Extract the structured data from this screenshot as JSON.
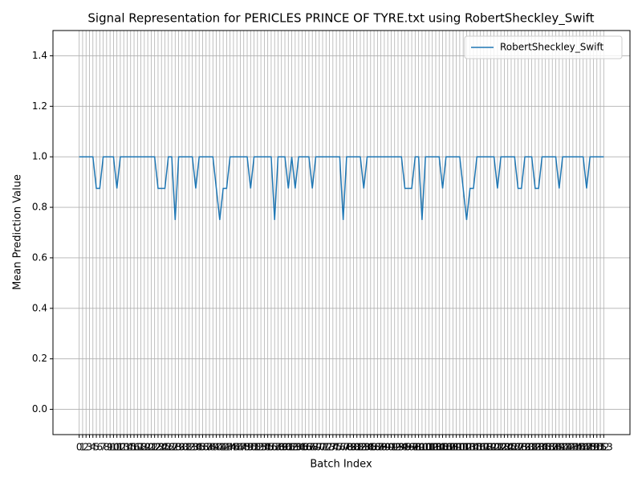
{
  "chart_data": {
    "type": "line",
    "title": "Signal Representation for PERICLES PRINCE OF TYRE.txt using RobertSheckley_Swift",
    "x_label": "Batch Index",
    "y_label": "Mean Prediction Value",
    "x": [
      0,
      1,
      2,
      3,
      4,
      5,
      6,
      7,
      8,
      9,
      10,
      11,
      12,
      13,
      14,
      15,
      16,
      17,
      18,
      19,
      20,
      21,
      22,
      23,
      24,
      25,
      26,
      27,
      28,
      29,
      30,
      31,
      32,
      33,
      34,
      35,
      36,
      37,
      38,
      39,
      40,
      41,
      42,
      43,
      44,
      45,
      46,
      47,
      48,
      49,
      50,
      51,
      52,
      53,
      54,
      55,
      56,
      57,
      58,
      59,
      60,
      61,
      62,
      63,
      64,
      65,
      66,
      67,
      68,
      69,
      70,
      71,
      72,
      73,
      74,
      75,
      76,
      77,
      78,
      79,
      80,
      81,
      82,
      83,
      84,
      85,
      86,
      87,
      88,
      89,
      90,
      91,
      92,
      93,
      94,
      95,
      96,
      97,
      98,
      99,
      100,
      101,
      102,
      103,
      104,
      105,
      106,
      107,
      108,
      109,
      110,
      111,
      112,
      113,
      114,
      115,
      116,
      117,
      118,
      119,
      120,
      121,
      122,
      123,
      124,
      125,
      126,
      127,
      128,
      129,
      130,
      131,
      132,
      133,
      134,
      135,
      136,
      137,
      138,
      139,
      140,
      141,
      142,
      143,
      144,
      145,
      146,
      147,
      148,
      149,
      150,
      151,
      152,
      153
    ],
    "series": [
      {
        "name": "RobertSheckley_Swift",
        "color": "#1f77b4",
        "values": [
          1,
          1,
          1,
          1,
          1,
          0.875,
          0.875,
          1,
          1,
          1,
          1,
          0.875,
          1,
          1,
          1,
          1,
          1,
          1,
          1,
          1,
          1,
          1,
          1,
          0.875,
          0.875,
          0.875,
          1,
          1,
          0.75,
          1,
          1,
          1,
          1,
          1,
          0.875,
          1,
          1,
          1,
          1,
          1,
          0.875,
          0.75,
          0.875,
          0.875,
          1,
          1,
          1,
          1,
          1,
          1,
          0.875,
          1,
          1,
          1,
          1,
          1,
          1,
          0.75,
          1,
          1,
          1,
          0.875,
          1,
          0.875,
          1,
          1,
          1,
          1,
          0.875,
          1,
          1,
          1,
          1,
          1,
          1,
          1,
          1,
          0.75,
          1,
          1,
          1,
          1,
          1,
          0.875,
          1,
          1,
          1,
          1,
          1,
          1,
          1,
          1,
          1,
          1,
          1,
          0.875,
          0.875,
          0.875,
          1,
          1,
          0.75,
          1,
          1,
          1,
          1,
          1,
          0.875,
          1,
          1,
          1,
          1,
          1,
          0.875,
          0.75,
          0.875,
          0.875,
          1,
          1,
          1,
          1,
          1,
          1,
          0.875,
          1,
          1,
          1,
          1,
          1,
          0.875,
          0.875,
          1,
          1,
          1,
          0.875,
          0.875,
          1,
          1,
          1,
          1,
          1,
          0.875,
          1,
          1,
          1,
          1,
          1,
          1,
          1,
          0.875,
          1,
          1,
          1,
          1,
          1
        ]
      }
    ],
    "xlim": [
      -7.65,
      160.65
    ],
    "xticks": [
      0,
      1,
      2,
      3,
      4,
      5,
      6,
      7,
      8,
      9,
      10,
      11,
      12,
      13,
      14,
      15,
      16,
      17,
      18,
      19,
      20,
      21,
      22,
      23,
      24,
      25,
      26,
      27,
      28,
      29,
      30,
      31,
      32,
      33,
      34,
      35,
      36,
      37,
      38,
      39,
      40,
      41,
      42,
      43,
      44,
      45,
      46,
      47,
      48,
      49,
      50,
      51,
      52,
      53,
      54,
      55,
      56,
      57,
      58,
      59,
      60,
      61,
      62,
      63,
      64,
      65,
      66,
      67,
      68,
      69,
      70,
      71,
      72,
      73,
      74,
      75,
      76,
      77,
      78,
      79,
      80,
      81,
      82,
      83,
      84,
      85,
      86,
      87,
      88,
      89,
      90,
      91,
      92,
      93,
      94,
      95,
      96,
      97,
      98,
      99,
      100,
      101,
      102,
      103,
      104,
      105,
      106,
      107,
      108,
      109,
      110,
      111,
      112,
      113,
      114,
      115,
      116,
      117,
      118,
      119,
      120,
      121,
      122,
      123,
      124,
      125,
      126,
      127,
      128,
      129,
      130,
      131,
      132,
      133,
      134,
      135,
      136,
      137,
      138,
      139,
      140,
      141,
      142,
      143,
      144,
      145,
      146,
      147,
      148,
      149,
      150,
      151,
      152,
      153
    ],
    "ylim": [
      -0.1,
      1.5
    ],
    "yticks": [
      {
        "value": 0,
        "label": "0.0"
      },
      0.2,
      0.4,
      0.6,
      0.8,
      {
        "value": 1,
        "label": "1.0"
      },
      1.2,
      1.4
    ],
    "grid": true,
    "legend": "upper right"
  }
}
